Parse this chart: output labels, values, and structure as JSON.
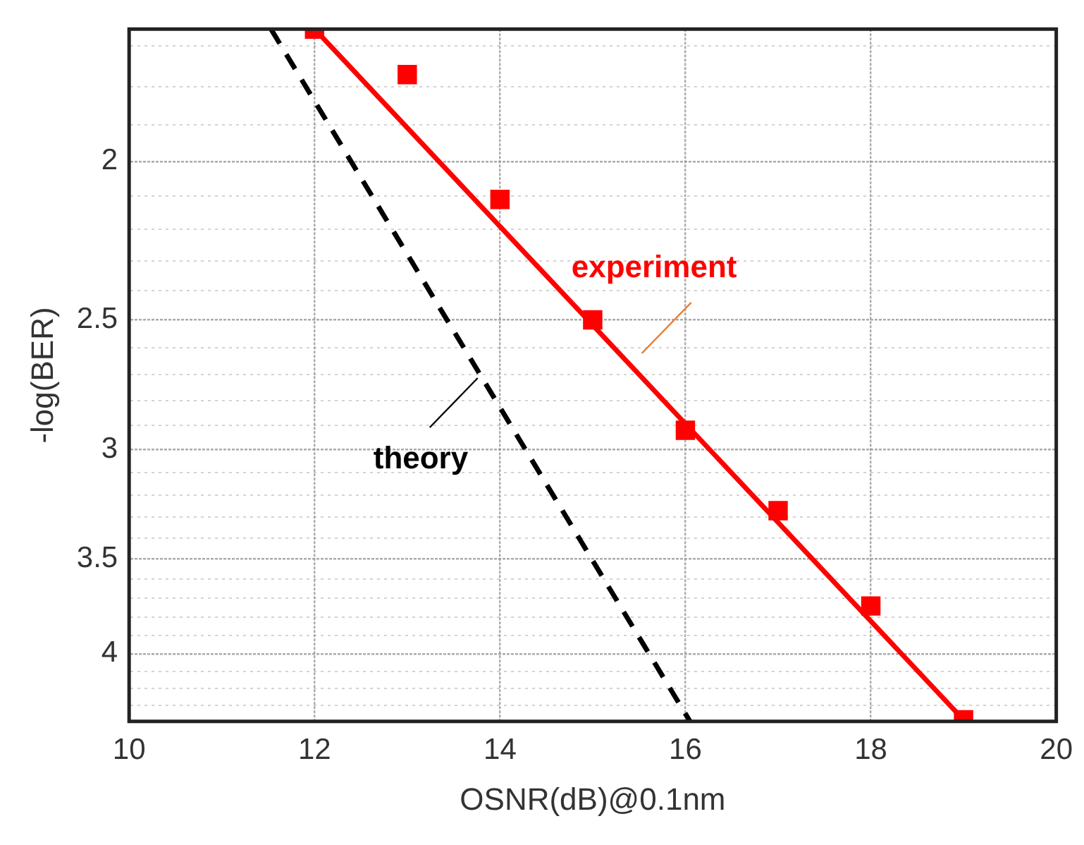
{
  "chart_data": {
    "type": "scatter",
    "xlabel": "OSNR(dB)@0.1nm",
    "ylabel": "-log(BER)",
    "log": "y",
    "grid": true,
    "xlim": [
      10,
      20
    ],
    "xticks": [
      10,
      12,
      14,
      16,
      18,
      20
    ],
    "ylim": [
      4.4,
      1.66
    ],
    "yticks": [
      {
        "value": 1.7,
        "label": null
      },
      {
        "value": 1.8,
        "label": null
      },
      {
        "value": 1.9,
        "label": null
      },
      2,
      {
        "value": 2.1,
        "label": null
      },
      {
        "value": 2.2,
        "label": null
      },
      {
        "value": 2.3,
        "label": null
      },
      {
        "value": 2.4,
        "label": null
      },
      2.5,
      {
        "value": 2.6,
        "label": null
      },
      {
        "value": 2.7,
        "label": null
      },
      {
        "value": 2.8,
        "label": null
      },
      {
        "value": 2.9,
        "label": null
      },
      3,
      {
        "value": 3.1,
        "label": null
      },
      {
        "value": 3.2,
        "label": null
      },
      {
        "value": 3.3,
        "label": null
      },
      {
        "value": 3.4,
        "label": null
      },
      3.5,
      {
        "value": 3.6,
        "label": null
      },
      {
        "value": 3.7,
        "label": null
      },
      {
        "value": 3.8,
        "label": null
      },
      {
        "value": 3.9,
        "label": null
      },
      4,
      {
        "value": 4.1,
        "label": null
      },
      {
        "value": 4.2,
        "label": null
      },
      {
        "value": 4.3,
        "label": null
      }
    ],
    "series": [
      {
        "type": "scatter",
        "color": "#ff0000",
        "marker": "square",
        "x": [
          12,
          13,
          14,
          15,
          16,
          17,
          18,
          19
        ],
        "values": [
          1.66,
          1.77,
          2.11,
          2.5,
          2.92,
          3.27,
          3.74,
          4.39
        ]
      },
      {
        "type": "line",
        "name": "experiment",
        "color": "#ff0000",
        "line_style": "solid",
        "x": [
          12,
          19
        ],
        "values": [
          1.66,
          4.39
        ]
      },
      {
        "type": "line",
        "name": "theory",
        "color": "#000000",
        "line_style": "dashed",
        "x": [
          11.53,
          16.05
        ],
        "values": [
          1.66,
          4.4
        ]
      }
    ]
  }
}
